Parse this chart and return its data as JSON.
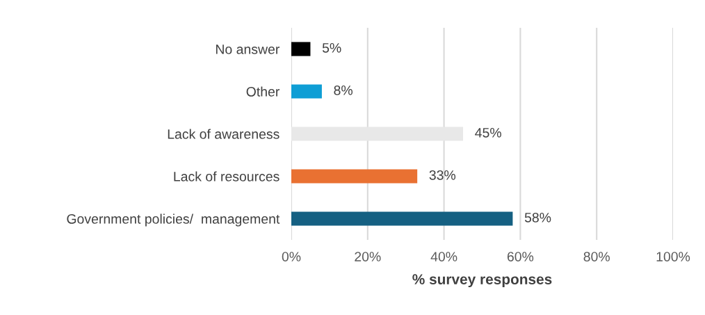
{
  "chart_data": {
    "type": "bar",
    "orientation": "horizontal",
    "xlabel": "% survey responses",
    "categories": [
      "No answer",
      "Other",
      "Lack of awareness",
      "Lack of resources",
      "Government policies/  management"
    ],
    "values": [
      5,
      8,
      45,
      33,
      58
    ],
    "colors": [
      "#000000",
      "#0f9ed5",
      "#e8e8e8",
      "#e97132",
      "#156082"
    ],
    "value_labels": [
      "5%",
      "8%",
      "45%",
      "33%",
      "58%"
    ],
    "xlim": [
      0,
      100
    ],
    "xticks": [
      {
        "value": 0,
        "label": "0%"
      },
      {
        "value": 20,
        "label": "20%"
      },
      {
        "value": 40,
        "label": "40%"
      },
      {
        "value": 60,
        "label": "60%"
      },
      {
        "value": 80,
        "label": "80%"
      },
      {
        "value": 100,
        "label": "100%"
      }
    ],
    "grid": "x",
    "legend": false
  }
}
